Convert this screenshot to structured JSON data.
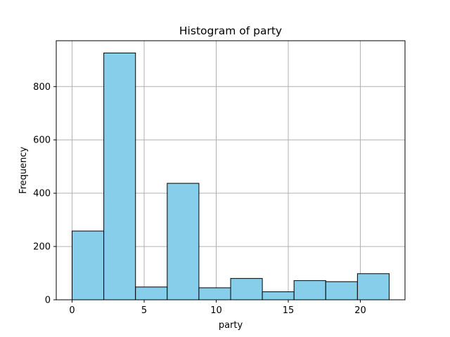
{
  "chart_data": {
    "type": "bar",
    "subtype": "histogram",
    "title": "Histogram of party",
    "xlabel": "party",
    "ylabel": "Frequency",
    "bin_edges": [
      0,
      2.2,
      4.4,
      6.6,
      8.8,
      11.0,
      13.2,
      15.4,
      17.6,
      19.8,
      22.0
    ],
    "values": [
      258,
      926,
      48,
      437,
      45,
      80,
      30,
      72,
      68,
      98
    ],
    "xlim": [
      -1.1,
      23.1
    ],
    "ylim": [
      0,
      972
    ],
    "xticks": [
      0,
      5,
      10,
      15,
      20
    ],
    "yticks": [
      0,
      200,
      400,
      600,
      800
    ],
    "grid": true,
    "bar_color": "#87ceeb",
    "edge_color": "#000000",
    "grid_color": "#b0b0b0"
  }
}
